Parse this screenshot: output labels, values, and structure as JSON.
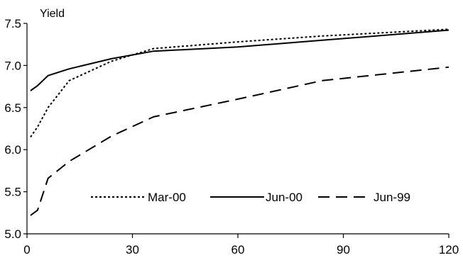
{
  "chart_data": {
    "type": "line",
    "ylabel": "Yield",
    "xlabel": "",
    "xlim": [
      0,
      120
    ],
    "ylim": [
      5.0,
      7.5
    ],
    "xticks": [
      0,
      30,
      60,
      90,
      120
    ],
    "xtick_labels": [
      "0",
      "30",
      "60",
      "90",
      "120"
    ],
    "yticks": [
      5.0,
      5.5,
      6.0,
      6.5,
      7.0,
      7.5
    ],
    "ytick_labels": [
      "5.0",
      "5.5",
      "6.0",
      "6.5",
      "7.0",
      "7.5"
    ],
    "grid": false,
    "legend_position": "bottom-center-inside",
    "series": [
      {
        "name": "Mar-00",
        "dash": "dotted",
        "x": [
          1,
          3,
          6,
          12,
          24,
          36,
          60,
          84,
          120
        ],
        "y": [
          6.15,
          6.27,
          6.5,
          6.82,
          7.05,
          7.2,
          7.28,
          7.35,
          7.43
        ]
      },
      {
        "name": "Jun-00",
        "dash": "solid",
        "x": [
          1,
          3,
          6,
          12,
          24,
          36,
          60,
          84,
          120
        ],
        "y": [
          6.7,
          6.76,
          6.88,
          6.96,
          7.08,
          7.17,
          7.22,
          7.3,
          7.42
        ]
      },
      {
        "name": "Jun-99",
        "dash": "dashed",
        "x": [
          1,
          3,
          6,
          12,
          24,
          36,
          60,
          84,
          120
        ],
        "y": [
          5.22,
          5.28,
          5.66,
          5.86,
          6.16,
          6.39,
          6.6,
          6.82,
          6.98
        ]
      }
    ]
  }
}
